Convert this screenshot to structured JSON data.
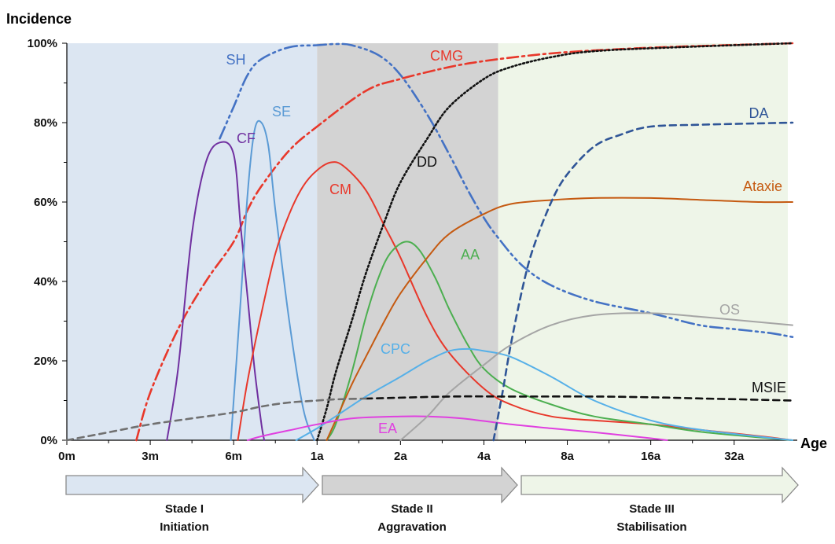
{
  "chart_data": {
    "type": "line",
    "ylabel": "Incidence",
    "xlabel": "Age",
    "ylim": [
      0,
      100
    ],
    "y_ticks": [
      "0%",
      "20%",
      "40%",
      "60%",
      "80%",
      "100%"
    ],
    "x_ticks": [
      "0m",
      "3m",
      "6m",
      "1a",
      "2a",
      "4a",
      "8a",
      "16a",
      "32a"
    ],
    "legend": "inline labels",
    "stages": [
      {
        "name": "Stade I",
        "subtitle": "Initiation",
        "range": [
          "0m",
          "1a"
        ],
        "color": "#dce6f2"
      },
      {
        "name": "Stade II",
        "subtitle": "Aggravation",
        "range": [
          "1a",
          "4.5a"
        ],
        "color": "#d3d3d3"
      },
      {
        "name": "Stade III",
        "subtitle": "Stabilisation",
        "range": [
          "4.5a",
          "50a"
        ],
        "color": "#eef5e8"
      }
    ],
    "series": [
      {
        "name": "SH",
        "color": "#4472c4",
        "dash": "dash-dot-dot",
        "points": [
          [
            5.5,
            76
          ],
          [
            6,
            84
          ],
          [
            7,
            92
          ],
          [
            8,
            96
          ],
          [
            10,
            99
          ],
          [
            12,
            99.5
          ],
          [
            14,
            99.8
          ],
          [
            16,
            99.5
          ],
          [
            20,
            97
          ],
          [
            24,
            92
          ],
          [
            30,
            82
          ],
          [
            36,
            72
          ],
          [
            42,
            63
          ],
          [
            48,
            56
          ],
          [
            54,
            51
          ],
          [
            66,
            44
          ],
          [
            84,
            39
          ],
          [
            120,
            35
          ],
          [
            192,
            32
          ],
          [
            288,
            29
          ],
          [
            384,
            28
          ],
          [
            516,
            27
          ],
          [
            624,
            26
          ]
        ]
      },
      {
        "name": "CMG",
        "color": "#e8382b",
        "dash": "dash-dot",
        "points": [
          [
            2.5,
            0
          ],
          [
            3,
            12
          ],
          [
            4,
            28
          ],
          [
            5,
            40
          ],
          [
            6,
            50
          ],
          [
            7,
            58
          ],
          [
            8,
            64
          ],
          [
            10,
            73
          ],
          [
            12,
            79
          ],
          [
            18,
            88
          ],
          [
            24,
            91
          ],
          [
            36,
            94
          ],
          [
            48,
            95.5
          ],
          [
            72,
            97
          ],
          [
            108,
            98
          ],
          [
            180,
            98.8
          ],
          [
            288,
            99.3
          ],
          [
            624,
            100
          ]
        ]
      },
      {
        "name": "CF",
        "color": "#7030a0",
        "dash": "solid",
        "points": [
          [
            3.6,
            0
          ],
          [
            4,
            18
          ],
          [
            4.5,
            52
          ],
          [
            5,
            70
          ],
          [
            5.5,
            75
          ],
          [
            6,
            72
          ],
          [
            6.5,
            54
          ],
          [
            7,
            36
          ],
          [
            7.5,
            18
          ],
          [
            8,
            4
          ],
          [
            8.2,
            0
          ]
        ]
      },
      {
        "name": "SE",
        "color": "#5b9bd5",
        "dash": "solid",
        "points": [
          [
            5.9,
            0
          ],
          [
            6.5,
            35
          ],
          [
            7,
            62
          ],
          [
            7.5,
            78
          ],
          [
            8,
            80
          ],
          [
            8.5,
            74
          ],
          [
            9,
            58
          ],
          [
            10,
            30
          ],
          [
            11,
            8
          ],
          [
            11.8,
            0
          ]
        ]
      },
      {
        "name": "CM",
        "color": "#e8382b",
        "dash": "solid",
        "points": [
          [
            6.3,
            0
          ],
          [
            7,
            15
          ],
          [
            8,
            32
          ],
          [
            9,
            47
          ],
          [
            10,
            57
          ],
          [
            11,
            64
          ],
          [
            12,
            68
          ],
          [
            13.5,
            70
          ],
          [
            15,
            69
          ],
          [
            18,
            63
          ],
          [
            21,
            54
          ],
          [
            24,
            46
          ],
          [
            30,
            31
          ],
          [
            36,
            22
          ],
          [
            48,
            13
          ],
          [
            60,
            9
          ],
          [
            84,
            6
          ],
          [
            120,
            5
          ],
          [
            192,
            4
          ],
          [
            300,
            2.5
          ],
          [
            480,
            1
          ],
          [
            624,
            0
          ]
        ]
      },
      {
        "name": "DD",
        "color": "#111111",
        "dash": "dotted",
        "points": [
          [
            12,
            0
          ],
          [
            13,
            8
          ],
          [
            14,
            17
          ],
          [
            16,
            30
          ],
          [
            18,
            42
          ],
          [
            21,
            55
          ],
          [
            24,
            65
          ],
          [
            30,
            76
          ],
          [
            36,
            84
          ],
          [
            48,
            91
          ],
          [
            60,
            94
          ],
          [
            84,
            96.5
          ],
          [
            120,
            98
          ],
          [
            240,
            99
          ],
          [
            624,
            100
          ]
        ]
      },
      {
        "name": "AA",
        "color": "#4caf50",
        "dash": "solid",
        "points": [
          [
            13,
            0
          ],
          [
            14,
            4
          ],
          [
            16,
            17
          ],
          [
            18,
            31
          ],
          [
            20,
            41
          ],
          [
            22,
            47
          ],
          [
            25,
            50
          ],
          [
            28,
            48
          ],
          [
            32,
            41
          ],
          [
            36,
            33
          ],
          [
            42,
            24
          ],
          [
            48,
            18
          ],
          [
            60,
            13
          ],
          [
            84,
            9
          ],
          [
            120,
            6
          ],
          [
            192,
            4
          ],
          [
            300,
            2
          ],
          [
            624,
            0
          ]
        ]
      },
      {
        "name": "Ataxie",
        "color": "#c55a11",
        "dash": "solid",
        "points": [
          [
            13,
            0
          ],
          [
            14,
            5
          ],
          [
            16,
            14
          ],
          [
            18,
            21
          ],
          [
            21,
            30
          ],
          [
            24,
            37
          ],
          [
            30,
            46
          ],
          [
            36,
            52
          ],
          [
            48,
            57
          ],
          [
            60,
            59.5
          ],
          [
            84,
            60.5
          ],
          [
            120,
            61
          ],
          [
            192,
            61
          ],
          [
            300,
            60.5
          ],
          [
            480,
            60
          ],
          [
            624,
            60
          ]
        ]
      },
      {
        "name": "CPC",
        "color": "#56b0e8",
        "dash": "solid",
        "points": [
          [
            10.5,
            0
          ],
          [
            12,
            3
          ],
          [
            14,
            6
          ],
          [
            18,
            11
          ],
          [
            24,
            16
          ],
          [
            30,
            20
          ],
          [
            36,
            22.5
          ],
          [
            42,
            23
          ],
          [
            48,
            22.5
          ],
          [
            60,
            21
          ],
          [
            84,
            16
          ],
          [
            120,
            10
          ],
          [
            192,
            5
          ],
          [
            300,
            2.5
          ],
          [
            624,
            0
          ]
        ]
      },
      {
        "name": "EA",
        "color": "#e040e0",
        "dash": "solid",
        "points": [
          [
            7,
            0
          ],
          [
            8,
            1
          ],
          [
            10,
            2.5
          ],
          [
            12,
            4
          ],
          [
            16,
            5.5
          ],
          [
            24,
            6
          ],
          [
            30,
            6
          ],
          [
            40,
            5.5
          ],
          [
            60,
            4
          ],
          [
            84,
            3
          ],
          [
            120,
            2
          ],
          [
            192,
            0.5
          ],
          [
            220,
            0
          ]
        ]
      },
      {
        "name": "OS",
        "color": "#a5a5a5",
        "dash": "solid",
        "points": [
          [
            24,
            0
          ],
          [
            30,
            6
          ],
          [
            36,
            12
          ],
          [
            48,
            19
          ],
          [
            60,
            24
          ],
          [
            84,
            29
          ],
          [
            120,
            31.5
          ],
          [
            192,
            32
          ],
          [
            300,
            31
          ],
          [
            624,
            29
          ]
        ]
      },
      {
        "name": "DA",
        "color": "#2f5597",
        "dash": "dashed",
        "points": [
          [
            52,
            0
          ],
          [
            56,
            12
          ],
          [
            60,
            24
          ],
          [
            66,
            38
          ],
          [
            72,
            48
          ],
          [
            84,
            60
          ],
          [
            96,
            67
          ],
          [
            120,
            74
          ],
          [
            150,
            77
          ],
          [
            192,
            79
          ],
          [
            300,
            79.5
          ],
          [
            624,
            80
          ]
        ]
      },
      {
        "name": "MSIE",
        "color": "#111111",
        "dash": "dashed",
        "points": [
          [
            18,
            10.5
          ],
          [
            36,
            11
          ],
          [
            60,
            11
          ],
          [
            120,
            11
          ],
          [
            200,
            10.8
          ],
          [
            300,
            10.5
          ],
          [
            624,
            10
          ]
        ]
      },
      {
        "name": "",
        "color": "#707070",
        "dash": "dashed",
        "points": [
          [
            0,
            0
          ],
          [
            1.5,
            2
          ],
          [
            3,
            4
          ],
          [
            4.5,
            5.5
          ],
          [
            6,
            7
          ],
          [
            8,
            8.5
          ],
          [
            10,
            9.5
          ],
          [
            12,
            10
          ],
          [
            14,
            10.3
          ],
          [
            18,
            10.5
          ]
        ]
      }
    ]
  }
}
